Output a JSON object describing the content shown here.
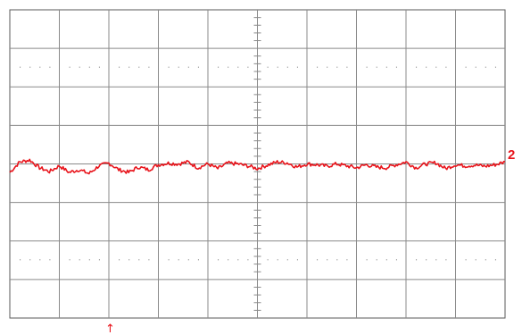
{
  "chart_data": {
    "type": "line",
    "title": "",
    "xlabel": "",
    "ylabel": "",
    "grid": true,
    "grid_divisions": {
      "x": 10,
      "y": 8
    },
    "xlim": [
      0,
      10
    ],
    "ylim": [
      -4,
      4
    ],
    "series": [
      {
        "channel_marker": "2",
        "color": "#e8141b",
        "x": [
          0,
          0.2,
          0.4,
          0.6,
          0.8,
          1.0,
          1.2,
          1.4,
          1.6,
          1.8,
          2.0,
          2.2,
          2.4,
          2.6,
          2.8,
          3.0,
          3.2,
          3.4,
          3.6,
          3.8,
          4.0,
          4.2,
          4.4,
          4.6,
          4.8,
          5.0,
          5.2,
          5.4,
          5.6,
          5.8,
          6.0,
          6.2,
          6.4,
          6.6,
          6.8,
          7.0,
          7.2,
          7.4,
          7.6,
          7.8,
          8.0,
          8.2,
          8.4,
          8.6,
          8.8,
          9.0,
          9.2,
          9.4,
          9.6,
          9.8,
          10.0
        ],
        "values": [
          -0.22,
          0.05,
          0.1,
          -0.1,
          -0.2,
          -0.05,
          -0.22,
          -0.15,
          -0.25,
          -0.05,
          0.02,
          -0.15,
          -0.22,
          -0.08,
          -0.15,
          -0.02,
          0.02,
          0.0,
          0.05,
          -0.1,
          0.0,
          -0.12,
          0.02,
          0.0,
          -0.05,
          -0.12,
          -0.03,
          0.05,
          0.03,
          -0.08,
          0.0,
          -0.02,
          -0.06,
          0.0,
          -0.05,
          -0.1,
          -0.02,
          -0.08,
          -0.1,
          -0.02,
          0.05,
          -0.1,
          0.0,
          0.03,
          -0.12,
          -0.02,
          -0.05,
          -0.03,
          -0.06,
          -0.02,
          0.05
        ]
      }
    ],
    "trigger_marker": "↑"
  }
}
